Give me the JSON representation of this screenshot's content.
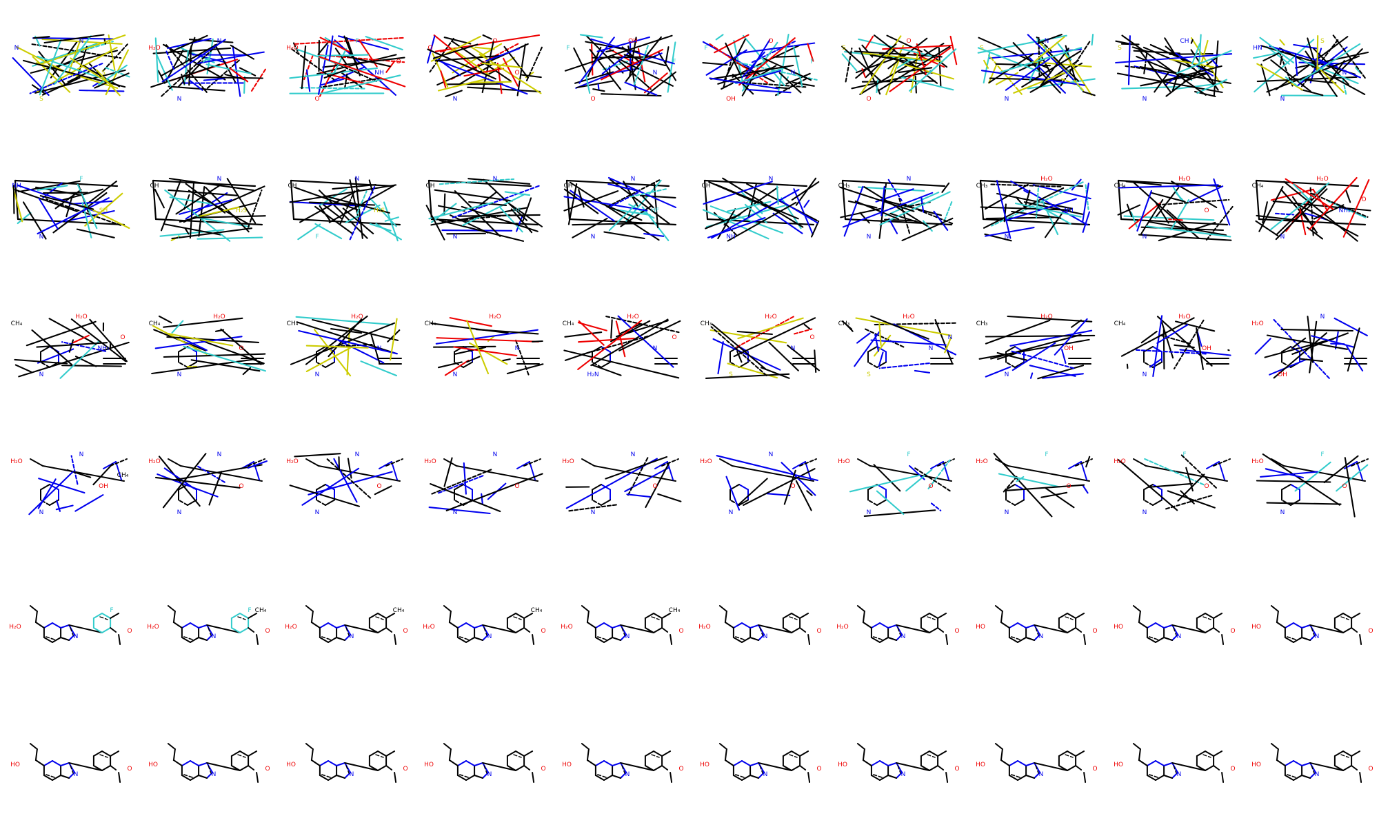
{
  "grid": {
    "rows": 6,
    "cols": 10
  },
  "colors": {
    "bond": "#000000",
    "nitrogen": "#0000ee",
    "oxygen": "#ee0000",
    "fluorine": "#33cccc",
    "sulfur": "#cccc00"
  },
  "panels": [
    {
      "stage": "noisy",
      "mix": [
        "sulfur",
        "fluorine",
        "nitrogen"
      ],
      "labels": [
        [
          "N",
          "nitrogen"
        ],
        [
          "N",
          "nitrogen"
        ],
        [
          "S",
          "sulfur"
        ],
        [
          "S",
          "sulfur"
        ]
      ]
    },
    {
      "stage": "noisy",
      "mix": [
        "fluorine",
        "nitrogen",
        "oxygen"
      ],
      "labels": [
        [
          "H₂O",
          "oxygen"
        ],
        [
          "N",
          "nitrogen"
        ],
        [
          "N",
          "nitrogen"
        ]
      ]
    },
    {
      "stage": "noisy",
      "mix": [
        "oxygen",
        "fluorine",
        "nitrogen"
      ],
      "labels": [
        [
          "H₂O",
          "oxygen"
        ],
        [
          "F",
          "fluorine"
        ],
        [
          "O",
          "oxygen"
        ],
        [
          "NH",
          "nitrogen"
        ],
        [
          "O",
          "oxygen"
        ]
      ]
    },
    {
      "stage": "noisy",
      "mix": [
        "oxygen",
        "nitrogen",
        "sulfur"
      ],
      "labels": [
        [
          "O",
          "oxygen"
        ],
        [
          "O",
          "oxygen"
        ],
        [
          "N",
          "nitrogen"
        ],
        [
          "O",
          "oxygen"
        ]
      ]
    },
    {
      "stage": "noisy",
      "mix": [
        "oxygen",
        "fluorine",
        "nitrogen"
      ],
      "labels": [
        [
          "F",
          "fluorine"
        ],
        [
          "OH",
          "oxygen"
        ],
        [
          "O",
          "oxygen"
        ],
        [
          "N",
          "nitrogen"
        ],
        [
          "F",
          "fluorine"
        ]
      ]
    },
    {
      "stage": "noisy",
      "mix": [
        "fluorine",
        "oxygen",
        "nitrogen"
      ],
      "labels": [
        [
          "F",
          "fluorine"
        ],
        [
          "O",
          "oxygen"
        ],
        [
          "OH",
          "oxygen"
        ],
        [
          "N",
          "nitrogen"
        ],
        [
          "F",
          "fluorine"
        ]
      ]
    },
    {
      "stage": "noisy",
      "mix": [
        "sulfur",
        "oxygen",
        "fluorine"
      ],
      "labels": [
        [
          "S",
          "sulfur"
        ],
        [
          "O",
          "oxygen"
        ],
        [
          "O",
          "oxygen"
        ],
        [
          "F",
          "fluorine"
        ]
      ]
    },
    {
      "stage": "noisy",
      "mix": [
        "sulfur",
        "nitrogen",
        "fluorine"
      ],
      "labels": [
        [
          "S",
          "sulfur"
        ],
        [
          "N",
          "nitrogen"
        ],
        [
          "N",
          "nitrogen"
        ],
        [
          "F",
          "fluorine"
        ]
      ]
    },
    {
      "stage": "noisy",
      "mix": [
        "sulfur",
        "fluorine",
        "nitrogen"
      ],
      "labels": [
        [
          "S",
          "sulfur"
        ],
        [
          "CH",
          "nitrogen"
        ],
        [
          "N",
          "nitrogen"
        ]
      ]
    },
    {
      "stage": "noisy",
      "mix": [
        "sulfur",
        "nitrogen",
        "fluorine"
      ],
      "labels": [
        [
          "HN",
          "nitrogen"
        ],
        [
          "S",
          "sulfur"
        ],
        [
          "N",
          "nitrogen"
        ],
        [
          "N",
          "nitrogen"
        ]
      ]
    },
    {
      "stage": "box",
      "mix": [
        "nitrogen",
        "fluorine",
        "sulfur"
      ],
      "labels": [
        [
          "NH",
          "nitrogen"
        ],
        [
          "F",
          "fluorine"
        ],
        [
          "N",
          "nitrogen"
        ],
        [
          "SH",
          "sulfur"
        ]
      ]
    },
    {
      "stage": "box",
      "mix": [
        "nitrogen",
        "fluorine",
        "sulfur"
      ],
      "labels": [
        [
          "CH",
          "bond"
        ],
        [
          "N",
          "nitrogen"
        ],
        [
          "F",
          "fluorine"
        ],
        [
          "H₂S",
          "sulfur"
        ]
      ]
    },
    {
      "stage": "box",
      "mix": [
        "nitrogen",
        "fluorine",
        "sulfur"
      ],
      "labels": [
        [
          "CH",
          "bond"
        ],
        [
          "N",
          "nitrogen"
        ],
        [
          "F",
          "fluorine"
        ],
        [
          "H₂S",
          "sulfur"
        ]
      ]
    },
    {
      "stage": "box",
      "mix": [
        "nitrogen",
        "fluorine"
      ],
      "labels": [
        [
          "CH",
          "bond"
        ],
        [
          "N",
          "nitrogen"
        ],
        [
          "N",
          "nitrogen"
        ],
        [
          "HF",
          "fluorine"
        ]
      ]
    },
    {
      "stage": "box",
      "mix": [
        "nitrogen",
        "fluorine"
      ],
      "labels": [
        [
          "CH",
          "bond"
        ],
        [
          "N",
          "nitrogen"
        ],
        [
          "N",
          "nitrogen"
        ],
        [
          "HF",
          "fluorine"
        ]
      ]
    },
    {
      "stage": "box",
      "mix": [
        "nitrogen",
        "fluorine"
      ],
      "labels": [
        [
          "CH",
          "bond"
        ],
        [
          "N",
          "nitrogen"
        ],
        [
          "NH",
          "nitrogen"
        ]
      ]
    },
    {
      "stage": "box",
      "mix": [
        "nitrogen",
        "fluorine"
      ],
      "labels": [
        [
          "CH₃",
          "bond"
        ],
        [
          "N",
          "nitrogen"
        ],
        [
          "N",
          "nitrogen"
        ]
      ]
    },
    {
      "stage": "box",
      "mix": [
        "nitrogen",
        "fluorine"
      ],
      "labels": [
        [
          "CH₃",
          "bond"
        ],
        [
          "H₂O",
          "oxygen"
        ],
        [
          "N",
          "nitrogen"
        ],
        [
          "NH",
          "nitrogen"
        ]
      ]
    },
    {
      "stage": "box",
      "mix": [
        "nitrogen",
        "fluorine",
        "oxygen"
      ],
      "labels": [
        [
          "CH₄",
          "bond"
        ],
        [
          "H₂O",
          "oxygen"
        ],
        [
          "N",
          "nitrogen"
        ],
        [
          "O",
          "oxygen"
        ]
      ]
    },
    {
      "stage": "box",
      "mix": [
        "nitrogen",
        "fluorine",
        "oxygen"
      ],
      "labels": [
        [
          "CH₄",
          "bond"
        ],
        [
          "H₂O",
          "oxygen"
        ],
        [
          "N",
          "nitrogen"
        ],
        [
          "NH₂",
          "nitrogen"
        ],
        [
          "O",
          "oxygen"
        ]
      ]
    },
    {
      "stage": "partial",
      "mix": [
        "nitrogen",
        "fluorine",
        "oxygen"
      ],
      "labels": [
        [
          "CH₄",
          "bond"
        ],
        [
          "H₂O",
          "oxygen"
        ],
        [
          "N",
          "nitrogen"
        ],
        [
          "NH₂",
          "nitrogen"
        ],
        [
          "O",
          "oxygen"
        ]
      ]
    },
    {
      "stage": "partial",
      "mix": [
        "nitrogen",
        "sulfur",
        "fluorine"
      ],
      "labels": [
        [
          "CH₄",
          "bond"
        ],
        [
          "H₂O",
          "oxygen"
        ],
        [
          "N",
          "nitrogen"
        ],
        [
          "O",
          "oxygen"
        ]
      ]
    },
    {
      "stage": "partial",
      "mix": [
        "nitrogen",
        "sulfur",
        "fluorine"
      ],
      "labels": [
        [
          "CH₄",
          "bond"
        ],
        [
          "H₂O",
          "oxygen"
        ],
        [
          "N",
          "nitrogen"
        ],
        [
          "N",
          "nitrogen"
        ]
      ]
    },
    {
      "stage": "partial",
      "mix": [
        "nitrogen",
        "sulfur",
        "oxygen"
      ],
      "labels": [
        [
          "CH₄",
          "bond"
        ],
        [
          "H₂O",
          "oxygen"
        ],
        [
          "N",
          "nitrogen"
        ],
        [
          "N",
          "nitrogen"
        ]
      ]
    },
    {
      "stage": "partial",
      "mix": [
        "nitrogen",
        "oxygen"
      ],
      "labels": [
        [
          "CH₄",
          "bond"
        ],
        [
          "H₂O",
          "oxygen"
        ],
        [
          "H₂N",
          "nitrogen"
        ],
        [
          "N",
          "nitrogen"
        ],
        [
          "O",
          "oxygen"
        ]
      ]
    },
    {
      "stage": "partial",
      "mix": [
        "sulfur",
        "nitrogen",
        "oxygen"
      ],
      "labels": [
        [
          "CH₃",
          "bond"
        ],
        [
          "H₂O",
          "oxygen"
        ],
        [
          "S",
          "sulfur"
        ],
        [
          "N",
          "nitrogen"
        ],
        [
          "O",
          "oxygen"
        ]
      ]
    },
    {
      "stage": "partial",
      "mix": [
        "sulfur",
        "nitrogen"
      ],
      "labels": [
        [
          "CH₃",
          "bond"
        ],
        [
          "H₂O",
          "oxygen"
        ],
        [
          "S",
          "sulfur"
        ],
        [
          "N",
          "nitrogen"
        ],
        [
          "N",
          "nitrogen"
        ]
      ]
    },
    {
      "stage": "partial",
      "mix": [
        "nitrogen"
      ],
      "labels": [
        [
          "CH₃",
          "bond"
        ],
        [
          "H₂O",
          "oxygen"
        ],
        [
          "N",
          "nitrogen"
        ],
        [
          "OH",
          "oxygen"
        ]
      ]
    },
    {
      "stage": "partial",
      "mix": [
        "nitrogen"
      ],
      "labels": [
        [
          "CH₄",
          "bond"
        ],
        [
          "H₂O",
          "oxygen"
        ],
        [
          "N",
          "nitrogen"
        ],
        [
          "OH",
          "oxygen"
        ]
      ]
    },
    {
      "stage": "partial",
      "mix": [
        "nitrogen"
      ],
      "labels": [
        [
          "H₂O",
          "oxygen"
        ],
        [
          "N",
          "nitrogen"
        ],
        [
          "OH",
          "oxygen"
        ]
      ]
    },
    {
      "stage": "near",
      "mix": [
        "nitrogen"
      ],
      "labels": [
        [
          "H₂O",
          "oxygen"
        ],
        [
          "N",
          "nitrogen"
        ],
        [
          "N",
          "nitrogen"
        ],
        [
          "OH",
          "oxygen"
        ],
        [
          "CH₄",
          "bond"
        ]
      ]
    },
    {
      "stage": "near",
      "mix": [
        "nitrogen"
      ],
      "labels": [
        [
          "H₂O",
          "oxygen"
        ],
        [
          "N",
          "nitrogen"
        ],
        [
          "N",
          "nitrogen"
        ],
        [
          "O",
          "oxygen"
        ]
      ]
    },
    {
      "stage": "near",
      "mix": [
        "nitrogen"
      ],
      "labels": [
        [
          "H₂O",
          "oxygen"
        ],
        [
          "N",
          "nitrogen"
        ],
        [
          "N",
          "nitrogen"
        ],
        [
          "O",
          "oxygen"
        ]
      ]
    },
    {
      "stage": "near",
      "mix": [
        "nitrogen"
      ],
      "labels": [
        [
          "H₂O",
          "oxygen"
        ],
        [
          "N",
          "nitrogen"
        ],
        [
          "N",
          "nitrogen"
        ],
        [
          "O",
          "oxygen"
        ]
      ]
    },
    {
      "stage": "near",
      "mix": [
        "nitrogen"
      ],
      "labels": [
        [
          "H₂O",
          "oxygen"
        ],
        [
          "N",
          "nitrogen"
        ],
        [
          "N",
          "nitrogen"
        ],
        [
          "O",
          "oxygen"
        ]
      ]
    },
    {
      "stage": "near",
      "mix": [
        "nitrogen"
      ],
      "labels": [
        [
          "H₂O",
          "oxygen"
        ],
        [
          "N",
          "nitrogen"
        ],
        [
          "N",
          "nitrogen"
        ],
        [
          "O",
          "oxygen"
        ]
      ]
    },
    {
      "stage": "near",
      "mix": [
        "nitrogen",
        "fluorine"
      ],
      "labels": [
        [
          "H₂O",
          "oxygen"
        ],
        [
          "F",
          "fluorine"
        ],
        [
          "N",
          "nitrogen"
        ],
        [
          "O",
          "oxygen"
        ]
      ]
    },
    {
      "stage": "near",
      "mix": [
        "nitrogen",
        "fluorine"
      ],
      "labels": [
        [
          "H₂O",
          "oxygen"
        ],
        [
          "F",
          "fluorine"
        ],
        [
          "N",
          "nitrogen"
        ],
        [
          "O",
          "oxygen"
        ]
      ]
    },
    {
      "stage": "near",
      "mix": [
        "nitrogen",
        "fluorine"
      ],
      "labels": [
        [
          "H₂O",
          "oxygen"
        ],
        [
          "F",
          "fluorine"
        ],
        [
          "N",
          "nitrogen"
        ],
        [
          "O",
          "oxygen"
        ]
      ]
    },
    {
      "stage": "near",
      "mix": [
        "nitrogen",
        "fluorine"
      ],
      "labels": [
        [
          "H₂O",
          "oxygen"
        ],
        [
          "F",
          "fluorine"
        ],
        [
          "N",
          "nitrogen"
        ],
        [
          "O",
          "oxygen"
        ]
      ]
    },
    {
      "stage": "final",
      "ring": "fluorine",
      "labels": [
        [
          "H₂O",
          "oxygen"
        ],
        [
          "F",
          "fluorine"
        ],
        [
          "N",
          "nitrogen"
        ],
        [
          "N",
          "nitrogen"
        ],
        [
          "O",
          "oxygen"
        ]
      ]
    },
    {
      "stage": "final",
      "ring": "fluorine",
      "labels": [
        [
          "H₂O",
          "oxygen"
        ],
        [
          "F",
          "fluorine"
        ],
        [
          "CH₄",
          "bond"
        ],
        [
          "N",
          "nitrogen"
        ],
        [
          "O",
          "oxygen"
        ]
      ]
    },
    {
      "stage": "final",
      "labels": [
        [
          "H₂O",
          "oxygen"
        ],
        [
          "CH₄",
          "bond"
        ],
        [
          "N",
          "nitrogen"
        ],
        [
          "O",
          "oxygen"
        ]
      ]
    },
    {
      "stage": "final",
      "labels": [
        [
          "H₂O",
          "oxygen"
        ],
        [
          "CH₄",
          "bond"
        ],
        [
          "N",
          "nitrogen"
        ],
        [
          "O",
          "oxygen"
        ]
      ]
    },
    {
      "stage": "final",
      "labels": [
        [
          "H₂O",
          "oxygen"
        ],
        [
          "CH₄",
          "bond"
        ],
        [
          "N",
          "nitrogen"
        ],
        [
          "O",
          "oxygen"
        ]
      ]
    },
    {
      "stage": "final",
      "labels": [
        [
          "H₂O",
          "oxygen"
        ],
        [
          "N",
          "nitrogen"
        ],
        [
          "O",
          "oxygen"
        ]
      ]
    },
    {
      "stage": "final",
      "labels": [
        [
          "H₂O",
          "oxygen"
        ],
        [
          "N",
          "nitrogen"
        ],
        [
          "O",
          "oxygen"
        ]
      ]
    },
    {
      "stage": "final",
      "labels": [
        [
          "HO",
          "oxygen"
        ],
        [
          "N",
          "nitrogen"
        ],
        [
          "O",
          "oxygen"
        ]
      ]
    },
    {
      "stage": "final",
      "labels": [
        [
          "HO",
          "oxygen"
        ],
        [
          "N",
          "nitrogen"
        ],
        [
          "O",
          "oxygen"
        ]
      ]
    },
    {
      "stage": "final",
      "labels": [
        [
          "HO",
          "oxygen"
        ],
        [
          "N",
          "nitrogen"
        ],
        [
          "O",
          "oxygen"
        ]
      ]
    },
    {
      "stage": "final",
      "labels": [
        [
          "HO",
          "oxygen"
        ],
        [
          "N",
          "nitrogen"
        ],
        [
          "O",
          "oxygen"
        ]
      ]
    },
    {
      "stage": "final",
      "labels": [
        [
          "HO",
          "oxygen"
        ],
        [
          "N",
          "nitrogen"
        ],
        [
          "O",
          "oxygen"
        ]
      ]
    },
    {
      "stage": "final",
      "labels": [
        [
          "HO",
          "oxygen"
        ],
        [
          "N",
          "nitrogen"
        ],
        [
          "O",
          "oxygen"
        ]
      ]
    },
    {
      "stage": "final",
      "labels": [
        [
          "HO",
          "oxygen"
        ],
        [
          "N",
          "nitrogen"
        ],
        [
          "O",
          "oxygen"
        ]
      ]
    },
    {
      "stage": "final",
      "labels": [
        [
          "HO",
          "oxygen"
        ],
        [
          "N",
          "nitrogen"
        ],
        [
          "O",
          "oxygen"
        ]
      ]
    },
    {
      "stage": "final",
      "labels": [
        [
          "HO",
          "oxygen"
        ],
        [
          "N",
          "nitrogen"
        ],
        [
          "O",
          "oxygen"
        ]
      ]
    },
    {
      "stage": "final",
      "labels": [
        [
          "HO",
          "oxygen"
        ],
        [
          "N",
          "nitrogen"
        ],
        [
          "O",
          "oxygen"
        ]
      ]
    },
    {
      "stage": "final",
      "labels": [
        [
          "HO",
          "oxygen"
        ],
        [
          "N",
          "nitrogen"
        ],
        [
          "O",
          "oxygen"
        ]
      ]
    },
    {
      "stage": "final",
      "labels": [
        [
          "HO",
          "oxygen"
        ],
        [
          "N",
          "nitrogen"
        ],
        [
          "O",
          "oxygen"
        ]
      ]
    },
    {
      "stage": "final",
      "labels": [
        [
          "HO",
          "oxygen"
        ],
        [
          "N",
          "nitrogen"
        ],
        [
          "O",
          "oxygen"
        ]
      ]
    }
  ]
}
